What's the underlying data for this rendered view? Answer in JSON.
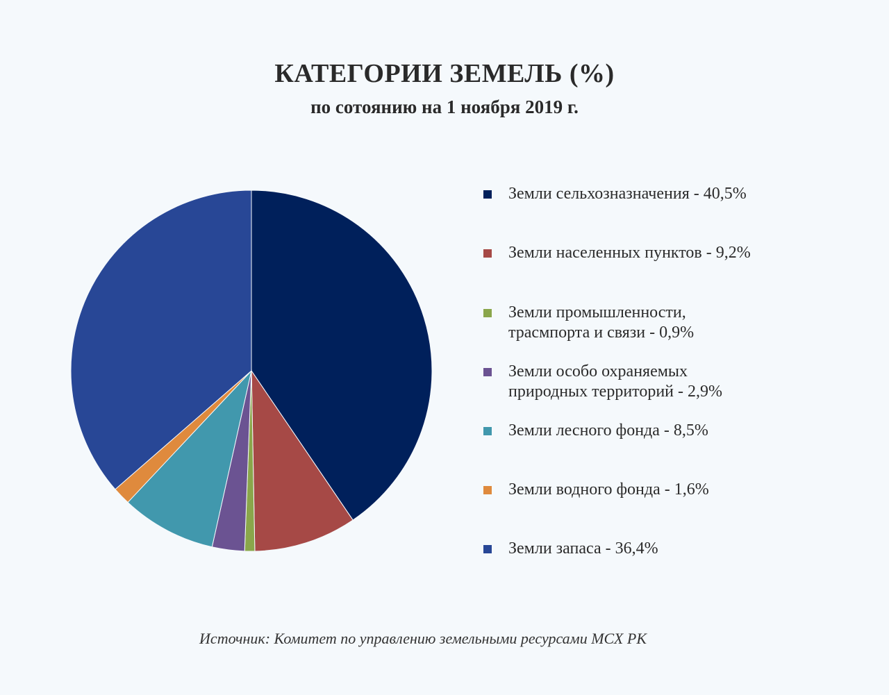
{
  "title": "КАТЕГОРИИ ЗЕМЕЛЬ (%)",
  "subtitle": "по сотоянию на 1 ноября 2019 г.",
  "source": "Источник: Комитет по управлению земельными ресурсами МСХ РК",
  "chart_data": {
    "type": "pie",
    "title": "КАТЕГОРИИ ЗЕМЕЛЬ (%)",
    "subtitle": "по сотоянию на 1 ноября 2019 г.",
    "unit": "%",
    "start_angle": "12 o'clock",
    "direction": "clockwise",
    "legend_position": "right",
    "slices": [
      {
        "label": "Земли сельхозназначения - 40,5%",
        "value": 40.5,
        "color": "#00205b"
      },
      {
        "label": "Земли населенных пунктов - 9,2%",
        "value": 9.2,
        "color": "#a64946"
      },
      {
        "label": "Земли промышленности,\nтрасмпорта и связи - 0,9%",
        "value": 0.9,
        "color": "#8aa64b"
      },
      {
        "label": "Земли особо охраняемых\nприродных территорий - 2,9%",
        "value": 2.9,
        "color": "#6b5392"
      },
      {
        "label": "Земли лесного фонда - 8,5%",
        "value": 8.5,
        "color": "#4198ad"
      },
      {
        "label": "Земли водного фонда - 1,6%",
        "value": 1.6,
        "color": "#df8a3d"
      },
      {
        "label": "Земли запаса - 36,4%",
        "value": 36.4,
        "color": "#284796"
      }
    ]
  }
}
